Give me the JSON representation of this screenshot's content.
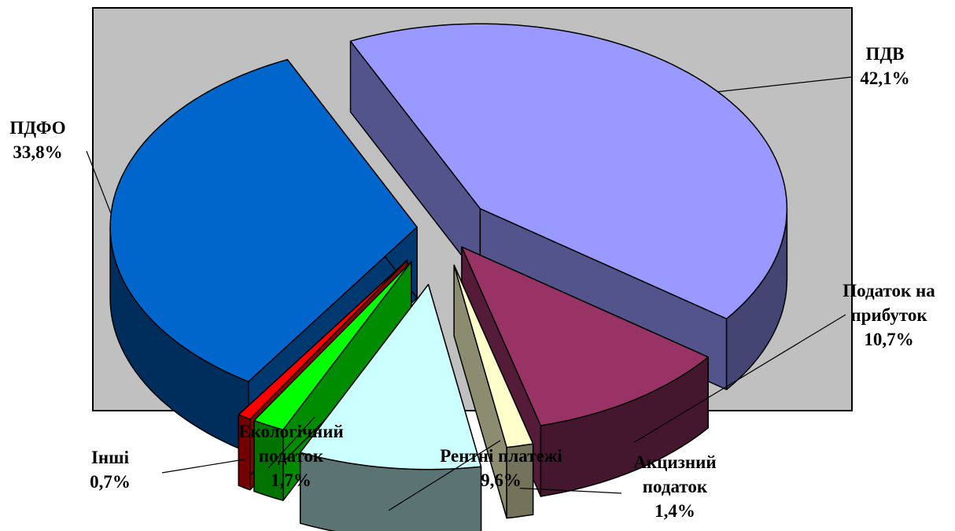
{
  "chart_data": {
    "type": "pie",
    "title": "",
    "view": "3d-exploded",
    "slices": [
      {
        "label": "ПДВ",
        "value": 42.1,
        "value_label": "42,1%",
        "color": "#9999ff"
      },
      {
        "label": "Податок на прибуток",
        "label_lines": [
          "Податок на",
          "прибуток"
        ],
        "value": 10.7,
        "value_label": "10,7%",
        "color": "#993366"
      },
      {
        "label": "Акцизний податок",
        "label_lines": [
          "Акцизний",
          "податок"
        ],
        "value": 1.4,
        "value_label": "1,4%",
        "color": "#ffffcc"
      },
      {
        "label": "Рентні платежі",
        "label_lines": [
          "Рентні платежі"
        ],
        "value": 9.6,
        "value_label": "9,6%",
        "color": "#ccffff"
      },
      {
        "label": "Екологічний податок",
        "label_lines": [
          "Екологічний",
          "податок"
        ],
        "value": 1.7,
        "value_label": "1,7%",
        "color": "#00ff00"
      },
      {
        "label": "Інші",
        "label_lines": [
          "Інші"
        ],
        "value": 0.7,
        "value_label": "0,7%",
        "color": "#ff0000"
      },
      {
        "label": "ПДФО",
        "label_lines": [
          "ПДФО"
        ],
        "value": 33.8,
        "value_label": "33,8%",
        "color": "#0066cc"
      }
    ],
    "plot_area_color": "#c0c0c0",
    "legend": "none"
  }
}
